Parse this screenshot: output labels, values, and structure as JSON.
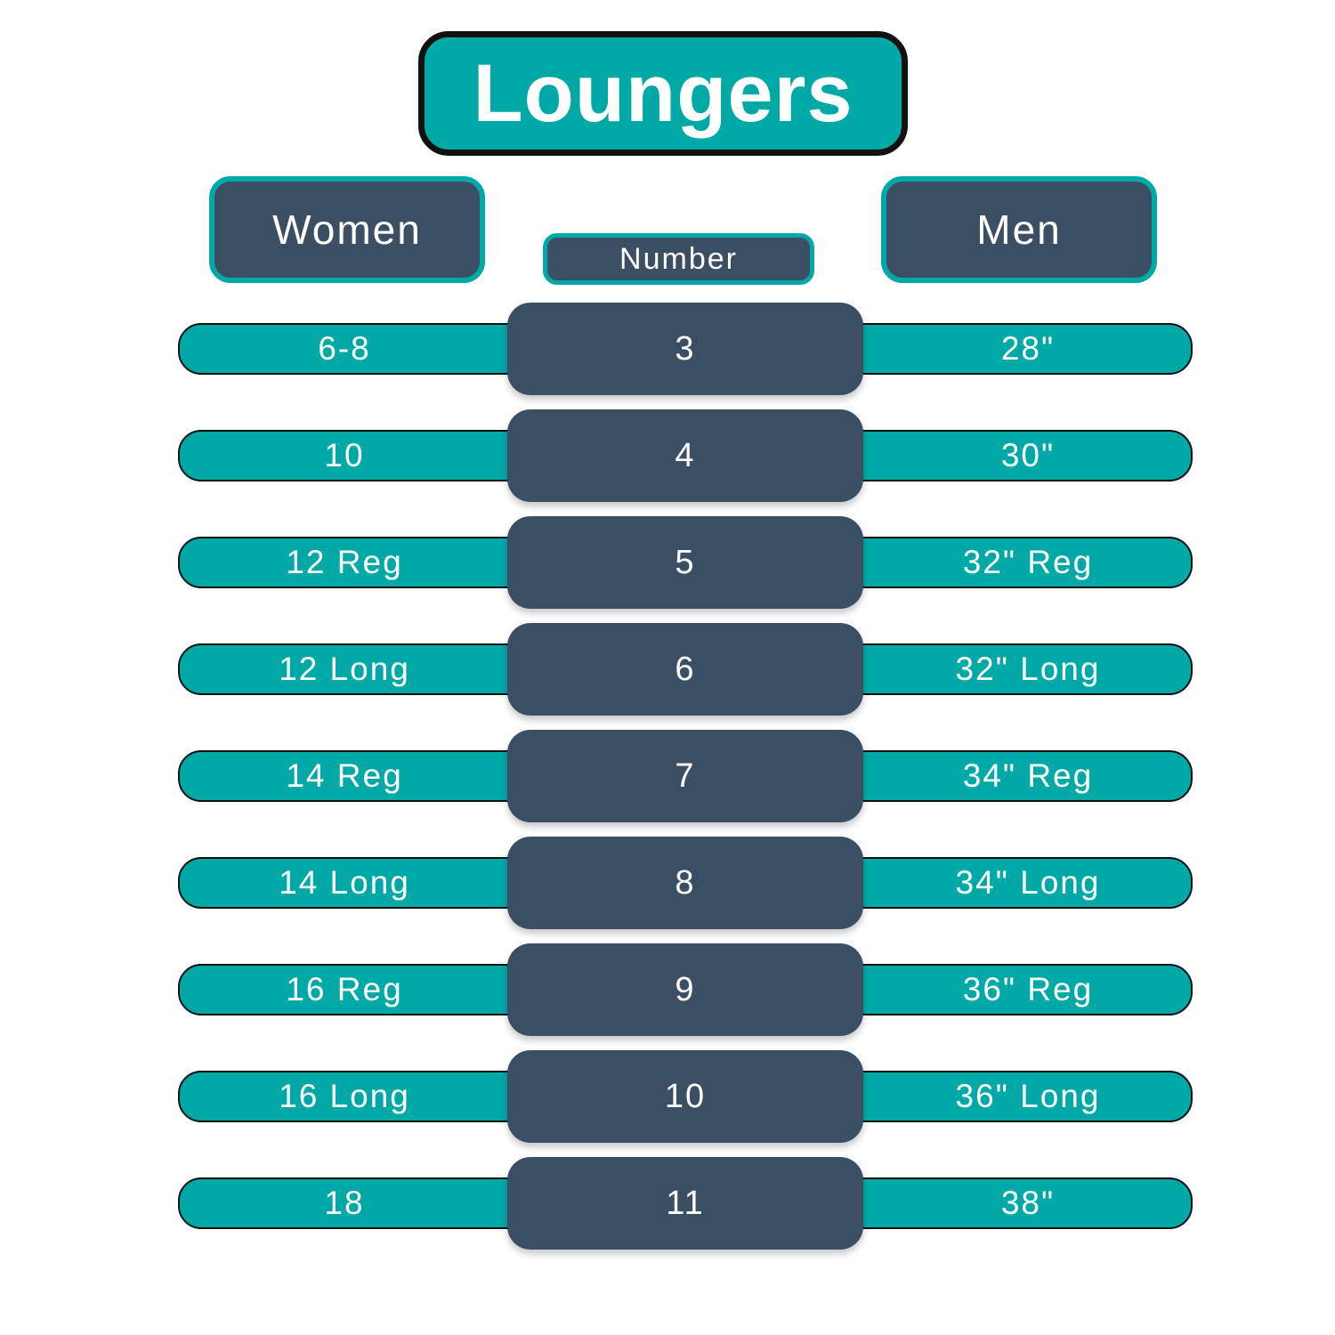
{
  "chart_data": {
    "type": "table",
    "title": "Loungers",
    "columns": [
      "Women",
      "Number",
      "Men"
    ],
    "rows": [
      [
        "6-8",
        "3",
        "28\""
      ],
      [
        "10",
        "4",
        "30\""
      ],
      [
        "12 Reg",
        "5",
        "32\" Reg"
      ],
      [
        "12 Long",
        "6",
        "32\" Long"
      ],
      [
        "14 Reg",
        "7",
        "34\" Reg"
      ],
      [
        "14 Long",
        "8",
        "34\" Long"
      ],
      [
        "16 Reg",
        "9",
        "36\" Reg"
      ],
      [
        "16 Long",
        "10",
        "36\" Long"
      ],
      [
        "18",
        "11",
        "38\""
      ]
    ],
    "layout": "teal pill rows with centered dark number badge, white background"
  },
  "colors": {
    "teal": "#00A9A6",
    "slate": "#3A4F63",
    "outline": "#111111",
    "text": "#FFFFFF",
    "background": "#FFFFFF"
  }
}
